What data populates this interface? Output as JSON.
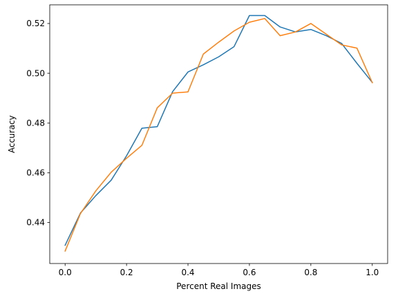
{
  "chart_data": {
    "type": "line",
    "title": "",
    "xlabel": "Percent Real Images",
    "ylabel": "Accuracy",
    "xlim": [
      -0.05,
      1.05
    ],
    "ylim": [
      0.4235,
      0.5275
    ],
    "xticks": [
      0.0,
      0.2,
      0.4,
      0.6,
      0.8,
      1.0
    ],
    "xtick_labels": [
      "0.0",
      "0.2",
      "0.4",
      "0.6",
      "0.8",
      "1.0"
    ],
    "yticks": [
      0.44,
      0.46,
      0.48,
      0.5,
      0.52
    ],
    "ytick_labels": [
      "0.44",
      "0.46",
      "0.48",
      "0.50",
      "0.52"
    ],
    "grid": false,
    "legend": "none",
    "x": [
      0.0,
      0.05,
      0.1,
      0.15,
      0.2,
      0.25,
      0.3,
      0.35,
      0.4,
      0.45,
      0.5,
      0.55,
      0.6,
      0.65,
      0.7,
      0.75,
      0.8,
      0.85,
      0.9,
      0.95,
      1.0
    ],
    "series": [
      {
        "color": "#1f77b4",
        "values": [
          0.4308,
          0.4438,
          0.4508,
          0.457,
          0.4668,
          0.4779,
          0.4785,
          0.4926,
          0.5005,
          0.5034,
          0.5066,
          0.5107,
          0.5232,
          0.5232,
          0.5186,
          0.5166,
          0.5176,
          0.5151,
          0.512,
          0.504,
          0.4963
        ]
      },
      {
        "color": "#ff7f0e",
        "values": [
          0.4285,
          0.4436,
          0.4527,
          0.4602,
          0.4658,
          0.471,
          0.4861,
          0.492,
          0.4925,
          0.5077,
          0.5125,
          0.517,
          0.5205,
          0.522,
          0.5151,
          0.5166,
          0.52,
          0.5157,
          0.5114,
          0.5101,
          0.4962
        ]
      }
    ]
  }
}
